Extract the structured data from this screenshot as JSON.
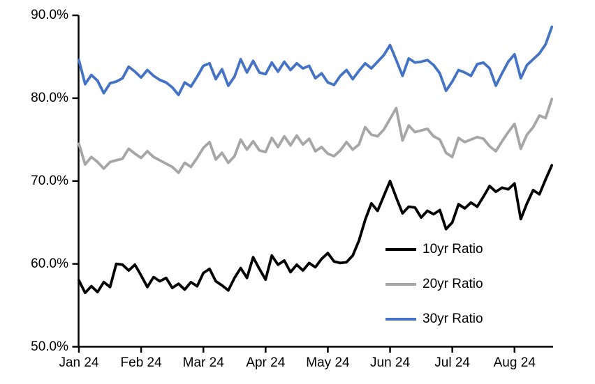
{
  "chart": {
    "background_color": "#FFFFFF",
    "axis_color": "#000000",
    "text_color": "#000000"
  },
  "chart_data": {
    "type": "line",
    "title": "",
    "xlabel": "",
    "ylabel": "",
    "x_unit": "months since Jan 1 2024 (fractional month units, daily-style series)",
    "xlim": [
      0,
      7.62
    ],
    "ylim": [
      50,
      90
    ],
    "grid": false,
    "legend_position": "inside-lower-right",
    "x_ticks": [
      0,
      1,
      2,
      3,
      4,
      5,
      6,
      7
    ],
    "x_tick_labels": [
      "Jan 24",
      "Feb 24",
      "Mar 24",
      "Apr 24",
      "May 24",
      "Jun 24",
      "Jul 24",
      "Aug 24"
    ],
    "y_ticks": [
      50,
      60,
      70,
      80,
      90
    ],
    "y_tick_labels": [
      "50.0%",
      "60.0%",
      "70.0%",
      "80.0%",
      "90.0%"
    ],
    "x": [
      0,
      0.1,
      0.2,
      0.3,
      0.4,
      0.5,
      0.6,
      0.7,
      0.8,
      0.9,
      1.0,
      1.1,
      1.2,
      1.3,
      1.4,
      1.5,
      1.6,
      1.7,
      1.8,
      1.9,
      2.0,
      2.1,
      2.2,
      2.3,
      2.4,
      2.5,
      2.6,
      2.7,
      2.8,
      2.9,
      3.0,
      3.1,
      3.2,
      3.3,
      3.4,
      3.5,
      3.6,
      3.7,
      3.8,
      3.9,
      4.0,
      4.1,
      4.2,
      4.3,
      4.4,
      4.5,
      4.6,
      4.7,
      4.8,
      4.9,
      5.0,
      5.1,
      5.2,
      5.3,
      5.4,
      5.5,
      5.6,
      5.7,
      5.8,
      5.9,
      6.0,
      6.1,
      6.2,
      6.3,
      6.4,
      6.5,
      6.6,
      6.7,
      6.8,
      6.9,
      7.0,
      7.1,
      7.2,
      7.3,
      7.4,
      7.5,
      7.6
    ],
    "series": [
      {
        "name": "10yr Ratio",
        "color": "#000000",
        "values": [
          58.0,
          56.5,
          57.3,
          56.6,
          57.8,
          57.2,
          60.0,
          59.9,
          59.2,
          59.9,
          58.6,
          57.2,
          58.4,
          57.9,
          58.3,
          57.1,
          57.6,
          56.9,
          57.8,
          57.3,
          58.9,
          59.4,
          57.9,
          57.4,
          56.8,
          58.3,
          59.5,
          58.3,
          60.8,
          59.4,
          58.1,
          61.0,
          59.9,
          60.4,
          59.0,
          59.9,
          59.2,
          60.1,
          59.6,
          60.6,
          61.3,
          60.3,
          60.1,
          60.2,
          61.0,
          62.8,
          65.3,
          67.3,
          66.4,
          68.2,
          70.0,
          68.0,
          66.1,
          66.9,
          66.8,
          65.6,
          66.4,
          66.0,
          66.5,
          64.2,
          65.0,
          67.2,
          66.7,
          67.4,
          66.9,
          68.1,
          69.4,
          68.7,
          69.2,
          69.0,
          69.7,
          65.4,
          67.3,
          68.9,
          68.4,
          70.2,
          71.9
        ]
      },
      {
        "name": "20yr Ratio",
        "color": "#A6A6A6",
        "values": [
          74.5,
          72.0,
          72.9,
          72.3,
          71.5,
          72.3,
          72.5,
          72.7,
          73.9,
          73.3,
          72.8,
          73.6,
          72.9,
          72.5,
          72.1,
          71.7,
          71.0,
          72.2,
          71.7,
          72.8,
          74.0,
          74.7,
          72.6,
          73.4,
          72.2,
          73.0,
          75.0,
          73.8,
          74.8,
          73.7,
          73.5,
          75.2,
          74.1,
          75.4,
          74.3,
          75.5,
          74.4,
          75.1,
          73.6,
          74.1,
          73.3,
          73.0,
          73.7,
          74.7,
          73.8,
          74.4,
          76.5,
          75.6,
          75.4,
          76.2,
          77.5,
          78.8,
          74.9,
          76.7,
          75.9,
          76.1,
          76.3,
          75.4,
          75.0,
          73.4,
          72.9,
          75.2,
          74.7,
          75.0,
          75.3,
          75.1,
          74.2,
          73.6,
          74.8,
          75.9,
          76.9,
          73.9,
          75.6,
          76.5,
          77.9,
          77.6,
          79.9
        ]
      },
      {
        "name": "30yr Ratio",
        "color": "#4472C4",
        "values": [
          84.6,
          81.7,
          82.8,
          82.1,
          80.6,
          81.8,
          82.0,
          82.4,
          83.8,
          83.2,
          82.5,
          83.4,
          82.7,
          82.2,
          81.9,
          81.3,
          80.4,
          81.9,
          81.4,
          82.6,
          83.9,
          84.2,
          82.3,
          83.5,
          81.5,
          82.6,
          84.7,
          83.1,
          84.5,
          83.1,
          82.9,
          84.3,
          83.2,
          84.4,
          83.4,
          84.2,
          83.6,
          83.9,
          82.4,
          83.0,
          81.9,
          81.6,
          82.7,
          83.4,
          82.3,
          83.3,
          84.2,
          83.6,
          84.4,
          85.2,
          86.4,
          84.6,
          82.7,
          84.8,
          84.3,
          84.4,
          84.6,
          84.0,
          83.0,
          80.9,
          82.0,
          83.4,
          83.1,
          82.7,
          84.1,
          84.3,
          83.6,
          81.5,
          83.0,
          84.4,
          85.3,
          82.4,
          84.0,
          84.7,
          85.4,
          86.5,
          88.6
        ]
      }
    ]
  }
}
